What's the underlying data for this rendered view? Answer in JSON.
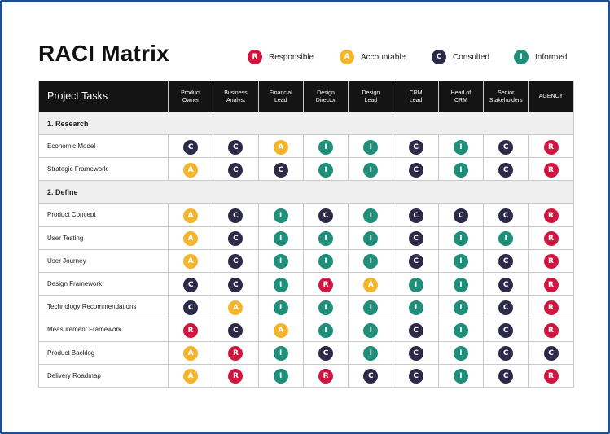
{
  "title": "RACI Matrix",
  "legend": [
    {
      "code": "R",
      "label": "Responsible"
    },
    {
      "code": "A",
      "label": "Accountable"
    },
    {
      "code": "C",
      "label": "Consulted"
    },
    {
      "code": "I",
      "label": "Informed"
    }
  ],
  "colors": {
    "R": "#d0163f",
    "A": "#f4b52d",
    "C": "#2c2a48",
    "I": "#1f8f7a",
    "frame": "#1f4e8c",
    "header_bg": "#141414"
  },
  "table": {
    "task_header": "Project Tasks",
    "roles": [
      [
        "Product",
        "Owner"
      ],
      [
        "Business",
        "Analyst"
      ],
      [
        "Financial",
        "Lead"
      ],
      [
        "Design",
        "Director"
      ],
      [
        "Design",
        "Lead"
      ],
      [
        "CRM",
        "Lead"
      ],
      [
        "Head of",
        "CRM"
      ],
      [
        "Senior",
        "Stakeholders"
      ],
      [
        "AGENCY",
        ""
      ]
    ],
    "sections": [
      {
        "name": "1. Research",
        "rows": [
          {
            "task": "Economic Model",
            "values": [
              "C",
              "C",
              "A",
              "I",
              "I",
              "C",
              "I",
              "C",
              "R"
            ]
          },
          {
            "task": "Strategic Framework",
            "values": [
              "A",
              "C",
              "C",
              "I",
              "I",
              "C",
              "I",
              "C",
              "R"
            ]
          }
        ]
      },
      {
        "name": "2. Define",
        "rows": [
          {
            "task": "Product Concept",
            "values": [
              "A",
              "C",
              "I",
              "C",
              "I",
              "C",
              "C",
              "C",
              "R"
            ]
          },
          {
            "task": "User Testing",
            "values": [
              "A",
              "C",
              "I",
              "I",
              "I",
              "C",
              "I",
              "I",
              "R"
            ]
          },
          {
            "task": "User Journey",
            "values": [
              "A",
              "C",
              "I",
              "I",
              "I",
              "C",
              "I",
              "C",
              "R"
            ]
          },
          {
            "task": "Design Framework",
            "values": [
              "C",
              "C",
              "I",
              "R",
              "A",
              "I",
              "I",
              "C",
              "R"
            ]
          },
          {
            "task": "Technology Recommendations",
            "values": [
              "C",
              "A",
              "I",
              "I",
              "I",
              "I",
              "I",
              "C",
              "R"
            ]
          },
          {
            "task": "Measurement Framework",
            "values": [
              "R",
              "C",
              "A",
              "I",
              "I",
              "C",
              "I",
              "C",
              "R"
            ]
          },
          {
            "task": "Product Backlog",
            "values": [
              "A",
              "R",
              "I",
              "C",
              "I",
              "C",
              "I",
              "C",
              "C"
            ]
          },
          {
            "task": "Delivery Roadmap",
            "values": [
              "A",
              "R",
              "I",
              "R",
              "C",
              "C",
              "I",
              "C",
              "R"
            ]
          }
        ]
      }
    ]
  }
}
